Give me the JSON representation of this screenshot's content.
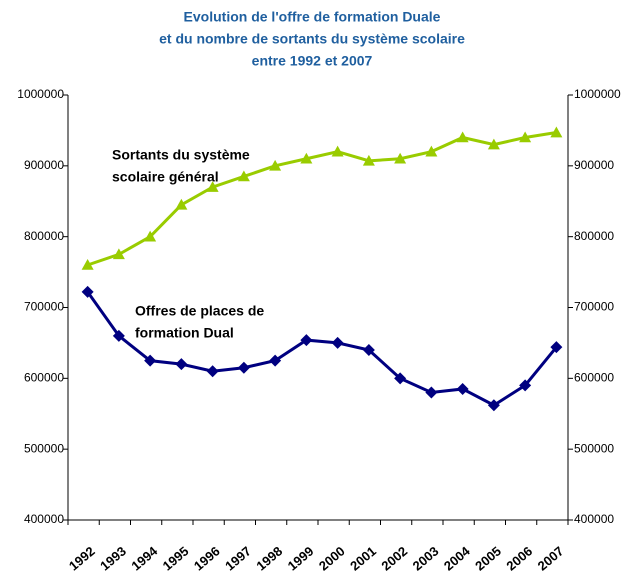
{
  "chart_data": {
    "type": "line",
    "title": [
      "Evolution de l'offre de formation Duale",
      "et du nombre de sortants du système scolaire",
      "entre 1992 et 2007"
    ],
    "categories": [
      "1992",
      "1993",
      "1994",
      "1995",
      "1996",
      "1997",
      "1998",
      "1999",
      "2000",
      "2001",
      "2002",
      "2003",
      "2004",
      "2005",
      "2006",
      "2007"
    ],
    "series": [
      {
        "color": "#99cc00",
        "marker": "triangle",
        "values": [
          760000,
          775000,
          800000,
          845000,
          870000,
          885000,
          900000,
          910000,
          920000,
          907000,
          910000,
          920000,
          940000,
          930000,
          940000,
          947000
        ]
      },
      {
        "color": "#000080",
        "marker": "diamond",
        "values": [
          722000,
          660000,
          625000,
          620000,
          610000,
          615000,
          625000,
          654000,
          650000,
          640000,
          600000,
          580000,
          585000,
          562000,
          590000,
          644000
        ]
      }
    ],
    "annotations": [
      {
        "text": [
          "Sortants du système",
          "scolaire général"
        ]
      },
      {
        "text": [
          "Offres de places de",
          "formation Dual"
        ]
      }
    ],
    "ylim": [
      400000,
      1000000
    ],
    "yticks": [
      400000,
      500000,
      600000,
      700000,
      800000,
      900000,
      1000000
    ],
    "y2lim": [
      400000,
      1000000
    ],
    "y2ticks": [
      400000,
      500000,
      600000,
      700000,
      800000,
      900000,
      1000000
    ],
    "grid": false
  }
}
